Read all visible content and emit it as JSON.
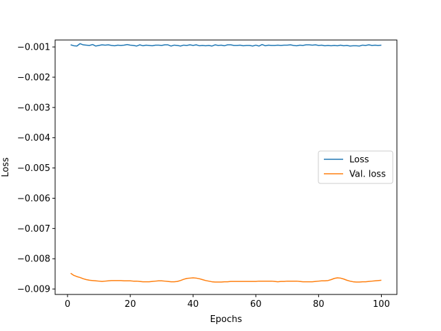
{
  "chart_data": {
    "type": "line",
    "title": "",
    "xlabel": "Epochs",
    "ylabel": "Loss",
    "xlim": [
      -3.95,
      104.95
    ],
    "ylim": [
      -0.00918,
      -0.00077
    ],
    "xticks": [
      0,
      20,
      40,
      60,
      80,
      100
    ],
    "xtick_labels": [
      "0",
      "20",
      "40",
      "60",
      "80",
      "100"
    ],
    "yticks": [
      -0.001,
      -0.002,
      -0.003,
      -0.004,
      -0.005,
      -0.006,
      -0.007,
      -0.008,
      -0.009
    ],
    "ytick_labels": [
      "−0.001",
      "−0.002",
      "−0.003",
      "−0.004",
      "−0.005",
      "−0.006",
      "−0.007",
      "−0.008",
      "−0.009"
    ],
    "grid": false,
    "legend_position": "center-right",
    "x": [
      1,
      2,
      3,
      4,
      5,
      6,
      7,
      8,
      9,
      10,
      11,
      12,
      13,
      14,
      15,
      16,
      17,
      18,
      19,
      20,
      21,
      22,
      23,
      24,
      25,
      26,
      27,
      28,
      29,
      30,
      31,
      32,
      33,
      34,
      35,
      36,
      37,
      38,
      39,
      40,
      41,
      42,
      43,
      44,
      45,
      46,
      47,
      48,
      49,
      50,
      51,
      52,
      53,
      54,
      55,
      56,
      57,
      58,
      59,
      60,
      61,
      62,
      63,
      64,
      65,
      66,
      67,
      68,
      69,
      70,
      71,
      72,
      73,
      74,
      75,
      76,
      77,
      78,
      79,
      80,
      81,
      82,
      83,
      84,
      85,
      86,
      87,
      88,
      89,
      90,
      91,
      92,
      93,
      94,
      95,
      96,
      97,
      98,
      99,
      100
    ],
    "series": [
      {
        "name": "Loss",
        "color": "#1f77b4",
        "values": [
          -0.00093,
          -0.00096,
          -0.00097,
          -0.00089,
          -0.00093,
          -0.00094,
          -0.00095,
          -0.00092,
          -0.00097,
          -0.00095,
          -0.00093,
          -0.00094,
          -0.00093,
          -0.00095,
          -0.00096,
          -0.00094,
          -0.00095,
          -0.00094,
          -0.00092,
          -0.00094,
          -0.00095,
          -0.00097,
          -0.00093,
          -0.00096,
          -0.00094,
          -0.00095,
          -0.00096,
          -0.00094,
          -0.00094,
          -0.00095,
          -0.00093,
          -0.00093,
          -0.00097,
          -0.00094,
          -0.00095,
          -0.00097,
          -0.00094,
          -0.00095,
          -0.00093,
          -0.00095,
          -0.00093,
          -0.00096,
          -0.00095,
          -0.00096,
          -0.00095,
          -0.00097,
          -0.00093,
          -0.00095,
          -0.00094,
          -0.00096,
          -0.00093,
          -0.00093,
          -0.00095,
          -0.00095,
          -0.00094,
          -0.00096,
          -0.00095,
          -0.00095,
          -0.00097,
          -0.00094,
          -0.00097,
          -0.00092,
          -0.00096,
          -0.00094,
          -0.00095,
          -0.00095,
          -0.00094,
          -0.00095,
          -0.00094,
          -0.00094,
          -0.00093,
          -0.00095,
          -0.00096,
          -0.00094,
          -0.00095,
          -0.00093,
          -0.00093,
          -0.00094,
          -0.00093,
          -0.00095,
          -0.00094,
          -0.00096,
          -0.00095,
          -0.00096,
          -0.00095,
          -0.00096,
          -0.00094,
          -0.00096,
          -0.00095,
          -0.00097,
          -0.00096,
          -0.00096,
          -0.00097,
          -0.00094,
          -0.00095,
          -0.00093,
          -0.00095,
          -0.00094,
          -0.00095,
          -0.00094
        ]
      },
      {
        "name": "Val. loss",
        "color": "#ff7f0e",
        "values": [
          -0.00848,
          -0.00855,
          -0.00859,
          -0.00862,
          -0.00866,
          -0.00869,
          -0.00871,
          -0.00872,
          -0.00873,
          -0.00874,
          -0.00875,
          -0.00874,
          -0.00873,
          -0.00872,
          -0.00872,
          -0.00872,
          -0.00872,
          -0.00873,
          -0.00873,
          -0.00873,
          -0.00874,
          -0.00874,
          -0.00875,
          -0.00876,
          -0.00876,
          -0.00876,
          -0.00875,
          -0.00874,
          -0.00873,
          -0.00873,
          -0.00874,
          -0.00875,
          -0.00876,
          -0.00876,
          -0.00875,
          -0.00872,
          -0.00868,
          -0.00865,
          -0.00864,
          -0.00863,
          -0.00864,
          -0.00866,
          -0.00869,
          -0.00872,
          -0.00874,
          -0.00876,
          -0.00877,
          -0.00877,
          -0.00877,
          -0.00876,
          -0.00876,
          -0.00875,
          -0.00875,
          -0.00875,
          -0.00875,
          -0.00875,
          -0.00875,
          -0.00875,
          -0.00875,
          -0.00875,
          -0.00874,
          -0.00874,
          -0.00874,
          -0.00874,
          -0.00874,
          -0.00875,
          -0.00876,
          -0.00875,
          -0.00875,
          -0.00874,
          -0.00874,
          -0.00874,
          -0.00874,
          -0.00875,
          -0.00876,
          -0.00876,
          -0.00876,
          -0.00876,
          -0.00875,
          -0.00874,
          -0.00873,
          -0.00873,
          -0.00872,
          -0.00869,
          -0.00865,
          -0.00863,
          -0.00864,
          -0.00867,
          -0.00871,
          -0.00874,
          -0.00876,
          -0.00877,
          -0.00877,
          -0.00876,
          -0.00876,
          -0.00875,
          -0.00874,
          -0.00873,
          -0.00872,
          -0.00871
        ]
      }
    ]
  }
}
